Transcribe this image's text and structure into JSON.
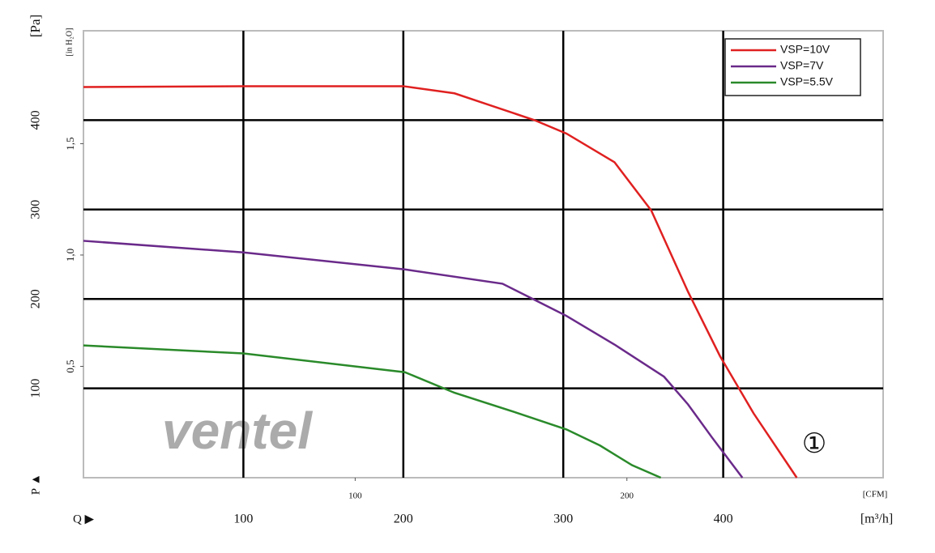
{
  "chart_data": {
    "type": "line",
    "y_label": "[Pa]",
    "y2_label": "[in H₂O]",
    "x_label": "[m³/h]",
    "x2_label": "[CFM]",
    "p_marker": "P ▲",
    "q_marker": "Q ▶",
    "annotation": "①",
    "watermark": "ventel",
    "xlim": [
      0,
      500
    ],
    "xticks": [
      100,
      200,
      300,
      400
    ],
    "ylim": [
      0,
      500
    ],
    "yticks": [
      100,
      200,
      300,
      400
    ],
    "y2lim": [
      0,
      2.007
    ],
    "y2ticks": [
      {
        "value": 0.5,
        "label": "0,5"
      },
      {
        "value": 1.0,
        "label": "1,0"
      },
      {
        "value": 1.5,
        "label": "1,5"
      }
    ],
    "x2lim": [
      0,
      294.3
    ],
    "x2ticks": [
      100,
      200
    ],
    "grid": true,
    "legend": "upper right",
    "series": [
      {
        "name": "VSP=10V",
        "color": "#e02020",
        "x": [
          0,
          100,
          200,
          232,
          282,
          302,
          332,
          355,
          378,
          398,
          419,
          446
        ],
        "values": [
          437,
          438,
          438,
          430,
          400,
          385,
          353,
          299,
          208,
          136,
          72,
          0
        ]
      },
      {
        "name": "VSP=7V",
        "color": "#6a2a8a",
        "x": [
          0,
          100,
          201,
          262,
          282,
          302,
          332,
          363,
          378,
          393,
          412
        ],
        "values": [
          265,
          252,
          233,
          217,
          199,
          181,
          149,
          113,
          82,
          45,
          0
        ]
      },
      {
        "name": "VSP=5.5V",
        "color": "#2a8a2a",
        "x": [
          0,
          100,
          201,
          232,
          272,
          302,
          323,
          343,
          361
        ],
        "values": [
          148,
          139,
          118,
          95,
          72,
          54,
          36,
          14,
          0
        ]
      }
    ]
  }
}
